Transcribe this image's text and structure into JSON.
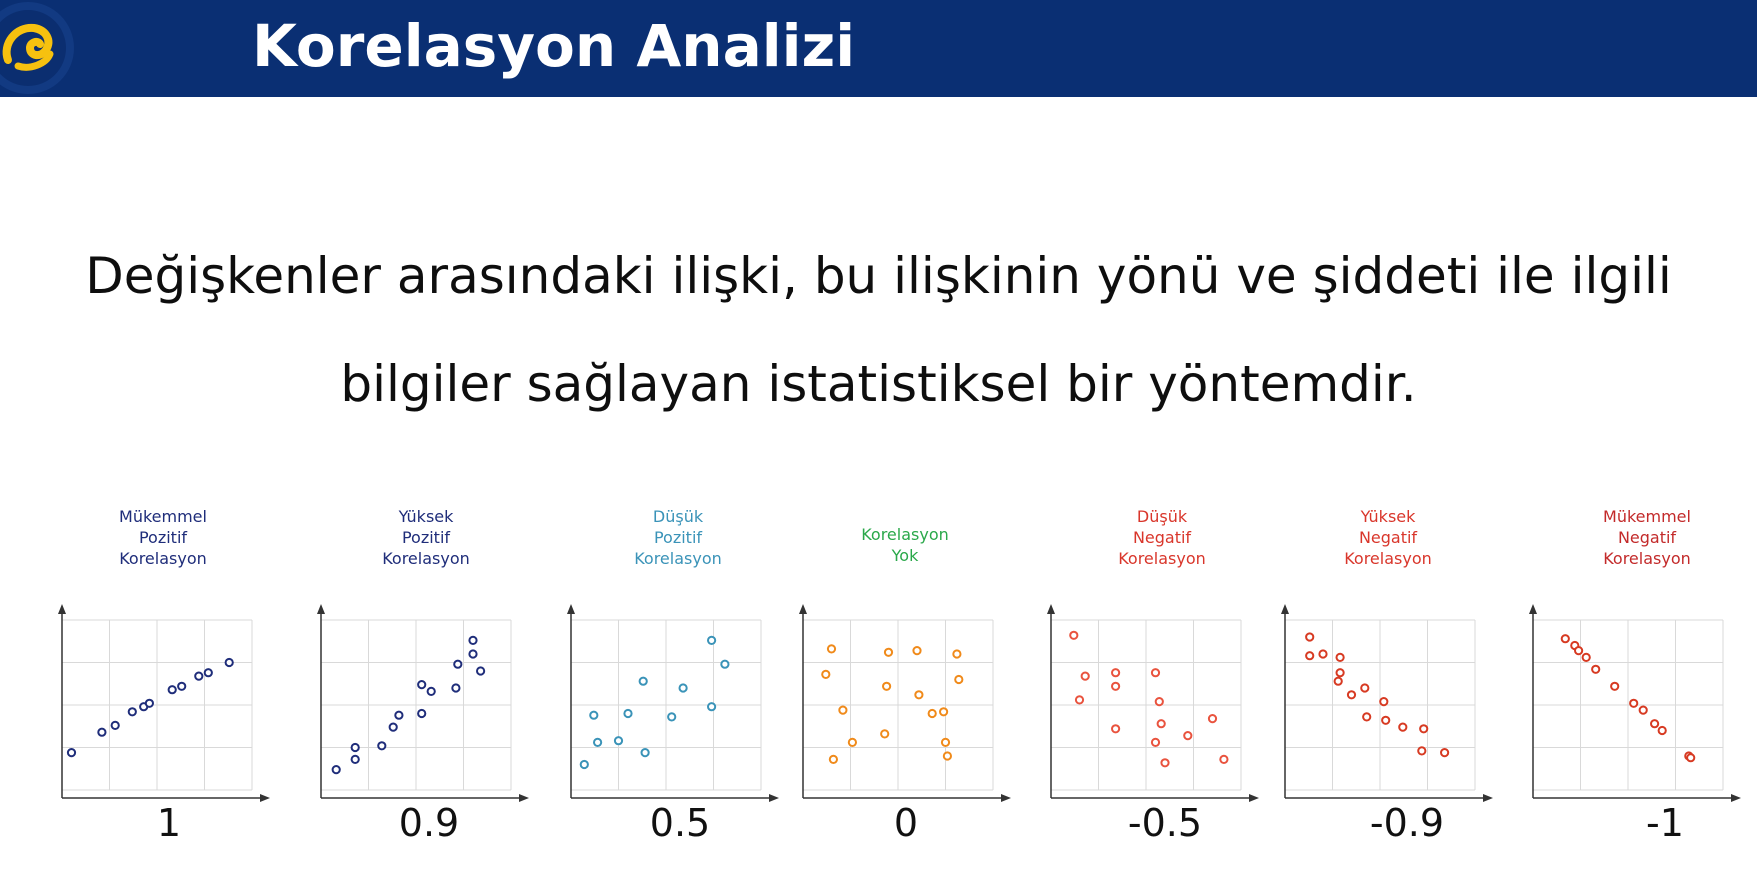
{
  "header": {
    "title": "Korelasyon Analizi",
    "bg_color": "#0a2f73",
    "logo_icon": "turkcell-logo-icon",
    "logo_color": "#f6c10f"
  },
  "description": {
    "line1": "Değişkenler arasındaki ilişki, bu ilişkinin yönü ve şiddeti ile ilgili",
    "line2": "bilgiler sağlayan istatistiksel bir yöntemdir."
  },
  "panels": [
    {
      "label": [
        "Mükemmel",
        "Pozitif",
        "Korelasyon"
      ],
      "value": "1",
      "color": "#1f2d7a"
    },
    {
      "label": [
        "Yüksek",
        "Pozitif",
        "Korelasyon"
      ],
      "value": "0.9",
      "color": "#1f2d7a"
    },
    {
      "label": [
        "Düşük",
        "Pozitif",
        "Korelasyon"
      ],
      "value": "0.5",
      "color": "#3a93b8"
    },
    {
      "label": [
        "Korelasyon",
        "Yok"
      ],
      "value": "0",
      "color": "#2aa84a",
      "point_color": "#f08a1a"
    },
    {
      "label": [
        "Düşük",
        "Negatif",
        "Korelasyon"
      ],
      "value": "-0.5",
      "color": "#d9362b",
      "point_color": "#e9533e"
    },
    {
      "label": [
        "Yüksek",
        "Negatif",
        "Korelasyon"
      ],
      "value": "-0.9",
      "color": "#d9362b",
      "point_color": "#d73a22"
    },
    {
      "label": [
        "Mükemmel",
        "Negatif",
        "Korelasyon"
      ],
      "value": "-1",
      "color": "#c32a2a",
      "point_color": "#d73a22"
    }
  ]
}
